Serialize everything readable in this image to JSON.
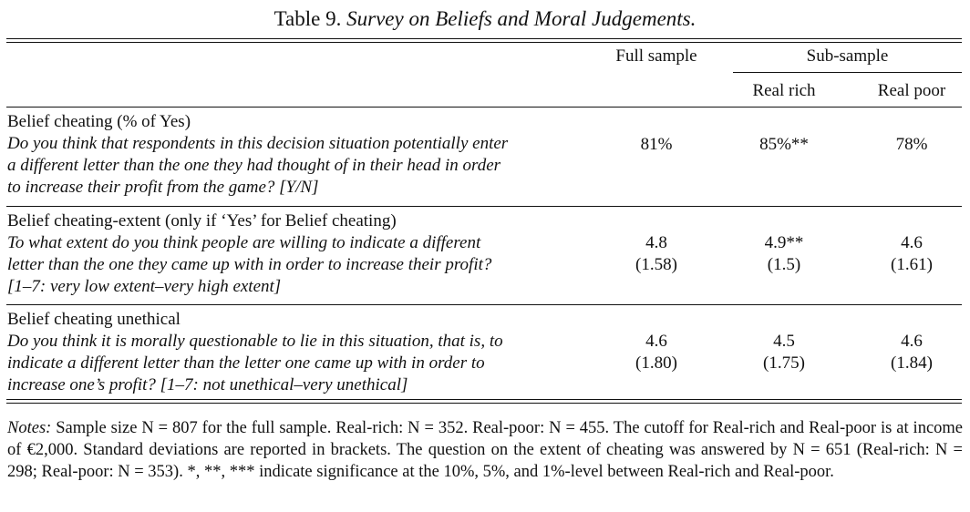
{
  "caption": {
    "label": "Table 9.",
    "title": "Survey on Beliefs and Moral Judgements."
  },
  "header": {
    "full_sample": "Full sample",
    "sub_sample": "Sub-sample",
    "real_rich": "Real rich",
    "real_poor": "Real poor"
  },
  "rows": [
    {
      "heading": "Belief cheating (% of Yes)",
      "question": "Do you think that respondents in this decision situation potentially enter\na different letter than the one they had thought of in their head in order\nto increase their profit from the game? [Y/N]",
      "full": "81%",
      "full_sd": "",
      "rich": "85%**",
      "rich_sd": "",
      "poor": "78%",
      "poor_sd": ""
    },
    {
      "heading": "Belief cheating-extent (only if ‘Yes’ for Belief cheating)",
      "question": "To what extent do you think people are willing to indicate a different\nletter than the one they came up with in order to increase their profit?\n[1–7: very low extent–very high extent]",
      "full": "4.8",
      "full_sd": "(1.58)",
      "rich": "4.9**",
      "rich_sd": "(1.5)",
      "poor": "4.6",
      "poor_sd": "(1.61)"
    },
    {
      "heading": "Belief cheating unethical",
      "question": "Do you think it is morally questionable to lie in this situation, that is, to\nindicate a different letter than the letter one came up with in order to\nincrease one’s profit? [1–7: not unethical–very unethical]",
      "full": "4.6",
      "full_sd": "(1.80)",
      "rich": "4.5",
      "rich_sd": "(1.75)",
      "poor": "4.6",
      "poor_sd": "(1.84)"
    }
  ],
  "notes": {
    "label": "Notes:",
    "text": "Sample size N = 807 for the full sample. Real-rich: N = 352. Real-poor: N = 455. The cutoff for Real-rich and Real-poor is at income of €2,000. Standard deviations are reported in brackets. The question on the extent of cheating was answered by N = 651 (Real-rich: N = 298; Real-poor: N = 353). *, **, *** indicate significance at the 10%, 5%, and 1%-level between Real-rich and Real-poor."
  }
}
